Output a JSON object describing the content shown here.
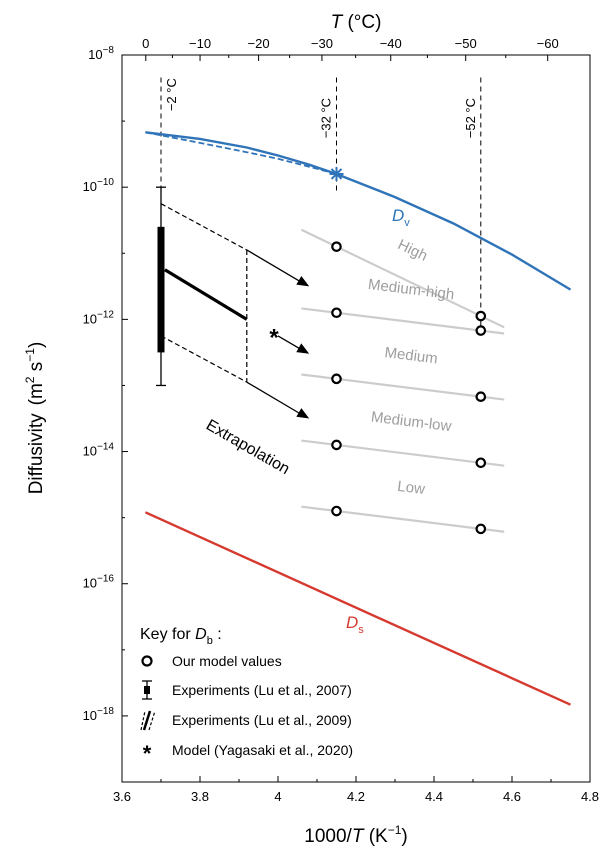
{
  "chart_data": {
    "type": "line",
    "x_axis": {
      "label_main": "1000/",
      "label_var": "T",
      "label_unit_open": " (K",
      "label_unit_exp": "−1",
      "label_unit_close": ")",
      "range": [
        3.6,
        4.8
      ],
      "ticks": [
        3.6,
        3.8,
        4.0,
        4.2,
        4.4,
        4.6,
        4.8
      ],
      "tick_labels": [
        "3.6",
        "3.8",
        "4",
        "4.2",
        "4.4",
        "4.6",
        "4.8"
      ]
    },
    "top_axis": {
      "label_var": "T",
      "label_unit": " (°C)",
      "ticks_c": [
        0,
        -10,
        -20,
        -30,
        -40,
        -50,
        -60
      ],
      "tick_labels": [
        "0",
        "−10",
        "−20",
        "−30",
        "−40",
        "−50",
        "−60"
      ]
    },
    "y_axis": {
      "label_main": "Diffusivity",
      "label_unit_open": "(m",
      "label_exp1": "2",
      "label_mid": " s",
      "label_exp2": "−1",
      "label_unit_close": ")",
      "scale": "log",
      "range": [
        -19,
        -8
      ],
      "ticks": [
        -18,
        -16,
        -14,
        -12,
        -10,
        -8
      ],
      "tick_base": "10",
      "tick_exps": [
        "−18",
        "−16",
        "−14",
        "−12",
        "−10",
        "−8"
      ]
    },
    "temperature_markers": [
      {
        "x": 3.7,
        "label": "−2 °C"
      },
      {
        "x": 4.15,
        "label": "−32 °C"
      },
      {
        "x": 4.52,
        "label": "−52 °C"
      }
    ],
    "Dv": {
      "label_main": "D",
      "label_sub": "v",
      "color": "#2f74b8",
      "solid": [
        [
          3.66,
          -9.17
        ],
        [
          3.8,
          -9.27
        ],
        [
          3.92,
          -9.4
        ],
        [
          4.0,
          -9.52
        ],
        [
          4.08,
          -9.66
        ],
        [
          4.15,
          -9.8
        ],
        [
          4.3,
          -10.15
        ],
        [
          4.45,
          -10.55
        ],
        [
          4.6,
          -11.02
        ],
        [
          4.75,
          -11.55
        ]
      ],
      "dashed": [
        [
          3.66,
          -9.17
        ],
        [
          3.8,
          -9.33
        ],
        [
          3.92,
          -9.47
        ],
        [
          4.0,
          -9.57
        ],
        [
          4.08,
          -9.69
        ],
        [
          4.15,
          -9.8
        ]
      ],
      "star_point": [
        4.15,
        -9.8
      ]
    },
    "Ds": {
      "label_main": "D",
      "label_sub": "s",
      "color": "#d63a2f",
      "line": [
        [
          3.66,
          -14.92
        ],
        [
          4.75,
          -17.83
        ]
      ]
    },
    "Db_levels": [
      {
        "name": "High",
        "p32": -10.9,
        "p52": -11.95
      },
      {
        "name": "Medium-high",
        "p32": -11.9,
        "p52": -12.17
      },
      {
        "name": "Medium",
        "p32": -12.9,
        "p52": -13.17
      },
      {
        "name": "Medium-low",
        "p32": -13.9,
        "p52": -14.17
      },
      {
        "name": "Low",
        "p32": -14.9,
        "p52": -15.17
      }
    ],
    "level_line_color": "#cccccc",
    "level_label_color": "#9e9e9e",
    "experiments_2007": {
      "x": 3.7,
      "bar": [
        -12.5,
        -10.6
      ],
      "whisker": [
        -13.0,
        -10.0
      ]
    },
    "experiments_2009": {
      "solid": [
        [
          3.71,
          -11.25
        ],
        [
          3.92,
          -12.0
        ]
      ],
      "upper_dashed": [
        [
          3.7,
          -10.25
        ],
        [
          3.92,
          -10.95
        ]
      ],
      "lower_dashed": [
        [
          3.7,
          -12.25
        ],
        [
          3.92,
          -12.95
        ]
      ],
      "vertical_x": 3.92
    },
    "model_yagasaki_2020": [
      3.99,
      -12.26
    ],
    "extrapolation": {
      "label": "Extrapolation",
      "arrows": [
        {
          "from": [
            3.92,
            -10.95
          ],
          "to": [
            4.08,
            -11.5
          ]
        },
        {
          "from": [
            4.0,
            -12.25
          ],
          "to": [
            4.08,
            -12.52
          ]
        },
        {
          "from": [
            3.92,
            -12.95
          ],
          "to": [
            4.08,
            -13.5
          ]
        }
      ]
    },
    "key": {
      "title_main": "Key for ",
      "title_var": "D",
      "title_sub": "b",
      "title_end": " :",
      "entries": [
        "Our model values",
        "Experiments (Lu et al., 2007)",
        "Experiments (Lu et al., 2009)",
        "Model (Yagasaki et al., 2020)"
      ]
    }
  }
}
